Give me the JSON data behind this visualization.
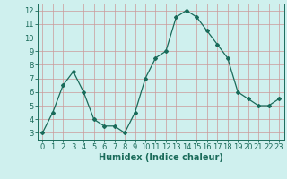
{
  "x": [
    0,
    1,
    2,
    3,
    4,
    5,
    6,
    7,
    8,
    9,
    10,
    11,
    12,
    13,
    14,
    15,
    16,
    17,
    18,
    19,
    20,
    21,
    22,
    23
  ],
  "y": [
    3.0,
    4.5,
    6.5,
    7.5,
    6.0,
    4.0,
    3.5,
    3.5,
    3.0,
    4.5,
    7.0,
    8.5,
    9.0,
    11.5,
    12.0,
    11.5,
    10.5,
    9.5,
    8.5,
    6.0,
    5.5,
    5.0,
    5.0,
    5.5
  ],
  "xlabel": "Humidex (Indice chaleur)",
  "ylim": [
    2.5,
    12.5
  ],
  "xlim": [
    -0.5,
    23.5
  ],
  "yticks": [
    3,
    4,
    5,
    6,
    7,
    8,
    9,
    10,
    11,
    12
  ],
  "xticks": [
    0,
    1,
    2,
    3,
    4,
    5,
    6,
    7,
    8,
    9,
    10,
    11,
    12,
    13,
    14,
    15,
    16,
    17,
    18,
    19,
    20,
    21,
    22,
    23
  ],
  "line_color": "#1a6b5a",
  "marker_color": "#1a6b5a",
  "bg_color": "#cff0ee",
  "grid_color": "#cc9999",
  "axis_color": "#1a6b5a",
  "xlabel_color": "#1a6b5a",
  "tick_fontsize": 6.0,
  "xlabel_fontsize": 7.0,
  "figsize": [
    3.2,
    2.0
  ],
  "dpi": 100
}
